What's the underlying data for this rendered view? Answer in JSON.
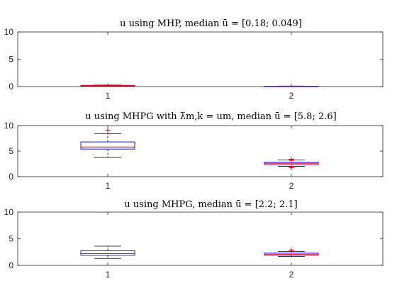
{
  "chart_data": [
    {
      "type": "boxplot",
      "title": "u using MHP, median ū = [0.18; 0.049]",
      "categories": [
        "1",
        "2"
      ],
      "yticks": [
        "0",
        "5",
        "10"
      ],
      "ylim": [
        0,
        10
      ],
      "boxes": [
        {
          "median": 0.18,
          "q1": 0.15,
          "q3": 0.22,
          "whisker_low": 0.1,
          "whisker_high": 0.28,
          "outliers": []
        },
        {
          "median": 0.049,
          "q1": 0.03,
          "q3": 0.07,
          "whisker_low": 0.01,
          "whisker_high": 0.1,
          "outliers": []
        }
      ]
    },
    {
      "type": "boxplot",
      "title": "u using MHPG with λ̃m,k = um, median ū = [5.8; 2.6]",
      "categories": [
        "1",
        "2"
      ],
      "yticks": [
        "0",
        "5",
        "10"
      ],
      "ylim": [
        0,
        10
      ],
      "boxes": [
        {
          "median": 5.8,
          "q1": 5.4,
          "q3": 6.8,
          "whisker_low": 3.8,
          "whisker_high": 8.4,
          "outliers": [
            9.1
          ]
        },
        {
          "median": 2.6,
          "q1": 2.35,
          "q3": 2.85,
          "whisker_low": 2.0,
          "whisker_high": 3.3,
          "outliers": [
            3.4,
            3.2,
            2.0,
            1.85,
            1.75
          ]
        }
      ]
    },
    {
      "type": "boxplot",
      "title": "u using MHPG, median ū = [2.2; 2.1]",
      "categories": [
        "1",
        "2"
      ],
      "yticks": [
        "0",
        "5",
        "10"
      ],
      "ylim": [
        0,
        10
      ],
      "boxes": [
        {
          "median": 2.2,
          "q1": 1.9,
          "q3": 2.75,
          "whisker_low": 1.3,
          "whisker_high": 3.6,
          "outliers": []
        },
        {
          "median": 2.1,
          "q1": 1.9,
          "q3": 2.3,
          "whisker_low": 1.65,
          "whisker_high": 2.6,
          "outliers": [
            2.7,
            2.9
          ]
        }
      ]
    }
  ],
  "colors": {
    "box": "#0000ff",
    "median": "#ff0000",
    "whisker": "#000000",
    "outlier": "#ff0000",
    "axes": "#262626"
  }
}
